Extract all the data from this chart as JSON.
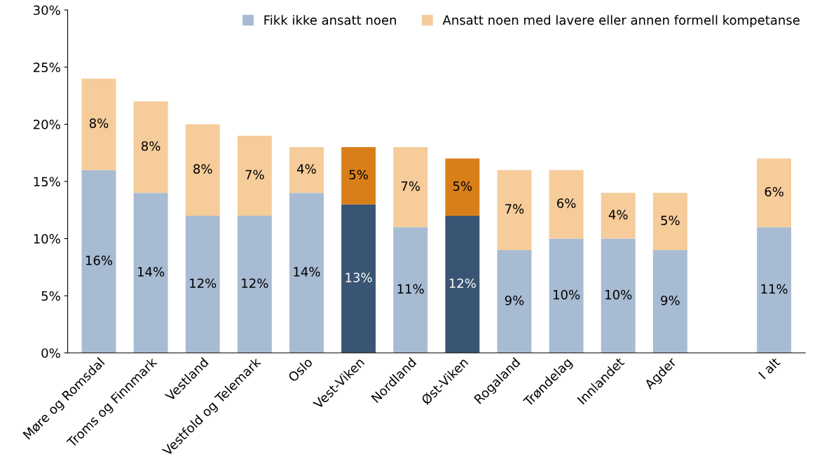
{
  "chart_data": {
    "type": "bar",
    "stacked": true,
    "categories": [
      "Møre og Romsdal",
      "Troms og Finnmark",
      "Vestland",
      "Vestfold og Telemark",
      "Oslo",
      "Vest-Viken",
      "Nordland",
      "Øst-Viken",
      "Rogaland",
      "Trøndelag",
      "Innlandet",
      "Agder",
      null,
      "I alt"
    ],
    "series": [
      {
        "name": "Fikk ikke ansatt noen",
        "color": "#a7bbd3",
        "colors": [
          "#a7bbd3",
          "#a7bbd3",
          "#a7bbd3",
          "#a7bbd3",
          "#a7bbd3",
          "#3a5573",
          "#a7bbd3",
          "#3a5573",
          "#a7bbd3",
          "#a7bbd3",
          "#a7bbd3",
          "#a7bbd3",
          null,
          "#a7bbd3"
        ],
        "values": [
          16,
          14,
          12,
          12,
          14,
          13,
          11,
          12,
          9,
          10,
          10,
          9,
          null,
          11
        ],
        "value_labels": [
          "16%",
          "14%",
          "12%",
          "12%",
          "14%",
          "13%",
          "11%",
          "12%",
          "9%",
          "10%",
          "10%",
          "9%",
          null,
          "11%"
        ]
      },
      {
        "name": "Ansatt noen med lavere eller annen formell kompetanse",
        "color": "#f5cc9a",
        "colors": [
          "#f5cc9a",
          "#f5cc9a",
          "#f5cc9a",
          "#f5cc9a",
          "#f5cc9a",
          "#d97f1a",
          "#f5cc9a",
          "#d97f1a",
          "#f5cc9a",
          "#f5cc9a",
          "#f5cc9a",
          "#f5cc9a",
          null,
          "#f5cc9a"
        ],
        "values": [
          8,
          8,
          8,
          7,
          4,
          5,
          7,
          5,
          7,
          6,
          4,
          5,
          null,
          6
        ],
        "value_labels": [
          "8%",
          "8%",
          "8%",
          "7%",
          "4%",
          "5%",
          "7%",
          "5%",
          "7%",
          "6%",
          "4%",
          "5%",
          null,
          "6%"
        ]
      }
    ],
    "ylim": [
      0,
      30
    ],
    "yticks": [
      {
        "value": 0,
        "label": "0%"
      },
      {
        "value": 5,
        "label": "5%"
      },
      {
        "value": 10,
        "label": "10%"
      },
      {
        "value": 15,
        "label": "15%"
      },
      {
        "value": 20,
        "label": "20%"
      },
      {
        "value": 25,
        "label": "25%"
      },
      {
        "value": 30,
        "label": "30%"
      }
    ],
    "legend": "top right",
    "grid": false
  }
}
